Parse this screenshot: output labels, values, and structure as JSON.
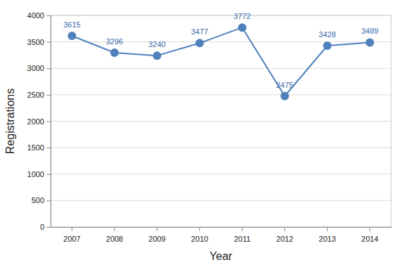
{
  "chart_data": {
    "type": "line",
    "categories": [
      "2007",
      "2008",
      "2009",
      "2010",
      "2011",
      "2012",
      "2013",
      "2014"
    ],
    "values": [
      3615,
      3296,
      3240,
      3477,
      3772,
      2475,
      3428,
      3489
    ],
    "color": "#4f81bd",
    "xlabel": "Year",
    "ylabel": "Registrations",
    "ylim": [
      0,
      4000
    ],
    "yticks": [
      0,
      500,
      1000,
      1500,
      2000,
      2500,
      3000,
      3500,
      4000
    ],
    "grid": true,
    "marker": "circle",
    "data_labels": true
  }
}
